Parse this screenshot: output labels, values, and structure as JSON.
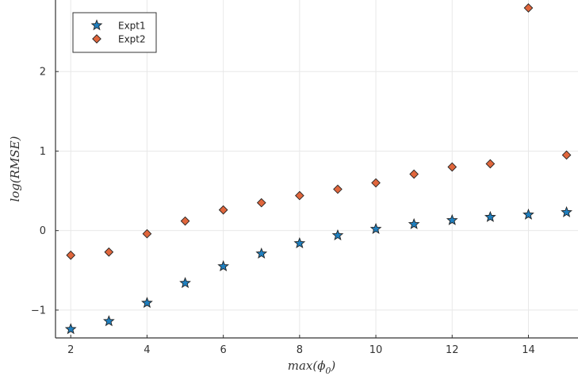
{
  "chart_data": {
    "type": "scatter",
    "xlabel": "max(ϕ",
    "xlabel_sub": "0",
    "xlabel_close": ")",
    "ylabel": "log(RMSE)",
    "xlim": [
      1.6,
      15.3
    ],
    "ylim": [
      -1.35,
      2.9
    ],
    "x_ticks": [
      2,
      4,
      6,
      8,
      10,
      12,
      14
    ],
    "y_ticks": [
      -1,
      0,
      1,
      2
    ],
    "y_tick_labels": [
      "−1",
      "0",
      "1",
      "2"
    ],
    "grid": true,
    "legend_position": "top-left",
    "series": [
      {
        "name": "Expt1",
        "marker": "star",
        "color": "#1f7fbf",
        "x": [
          2,
          3,
          4,
          5,
          6,
          7,
          8,
          9,
          10,
          11,
          12,
          13,
          14,
          15
        ],
        "y": [
          -1.24,
          -1.14,
          -0.91,
          -0.66,
          -0.45,
          -0.29,
          -0.16,
          -0.06,
          0.02,
          0.08,
          0.13,
          0.17,
          0.2,
          0.23
        ]
      },
      {
        "name": "Expt2",
        "marker": "diamond",
        "color": "#e0663c",
        "x": [
          2,
          3,
          4,
          5,
          6,
          7,
          8,
          9,
          10,
          11,
          12,
          13,
          14,
          15
        ],
        "y": [
          -0.31,
          -0.27,
          -0.04,
          0.12,
          0.26,
          0.35,
          0.44,
          0.52,
          0.6,
          0.71,
          0.8,
          0.84,
          2.8,
          0.95
        ]
      }
    ]
  }
}
